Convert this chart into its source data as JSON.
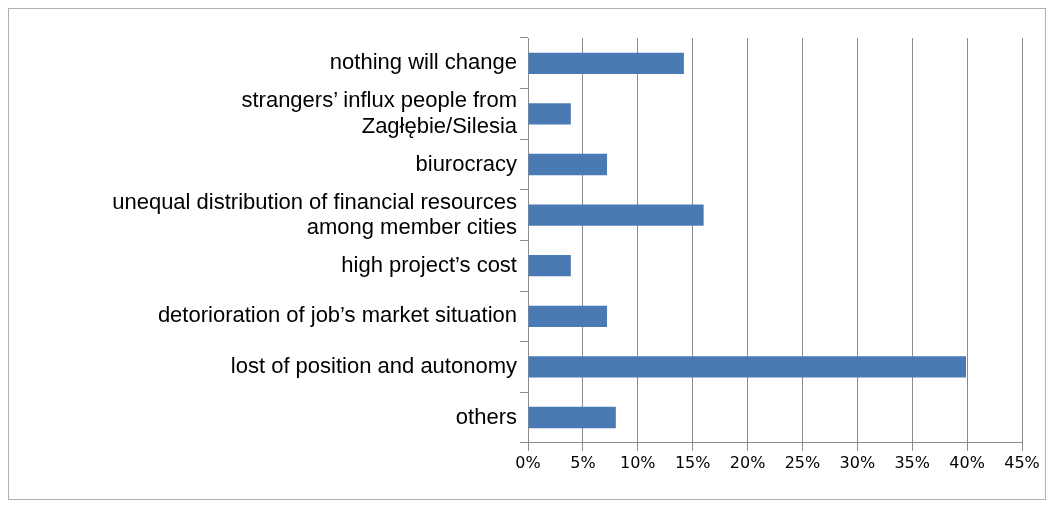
{
  "chart_data": {
    "type": "bar",
    "orientation": "horizontal",
    "categories": [
      "nothing will change",
      "strangers’ influx people from Zagłębie/Silesia",
      "biurocracy",
      "unequal distribution of financial resources among member cities",
      "high project’s cost",
      "detorioration of job’s market situation",
      "lost of position and autonomy",
      "others"
    ],
    "values": [
      14.2,
      3.9,
      7.2,
      16.0,
      3.9,
      7.2,
      39.9,
      8.0
    ],
    "color": "#4a7ab4",
    "xlim": [
      0,
      45
    ],
    "xticks": [
      {
        "value": 0,
        "label": "0%"
      },
      {
        "value": 5,
        "label": "5%"
      },
      {
        "value": 10,
        "label": "10%"
      },
      {
        "value": 15,
        "label": "15%"
      },
      {
        "value": 20,
        "label": "20%"
      },
      {
        "value": 25,
        "label": "25%"
      },
      {
        "value": 30,
        "label": "30%"
      },
      {
        "value": 35,
        "label": "35%"
      },
      {
        "value": 40,
        "label": "40%"
      },
      {
        "value": 45,
        "label": "45%"
      }
    ],
    "grid": "x"
  }
}
